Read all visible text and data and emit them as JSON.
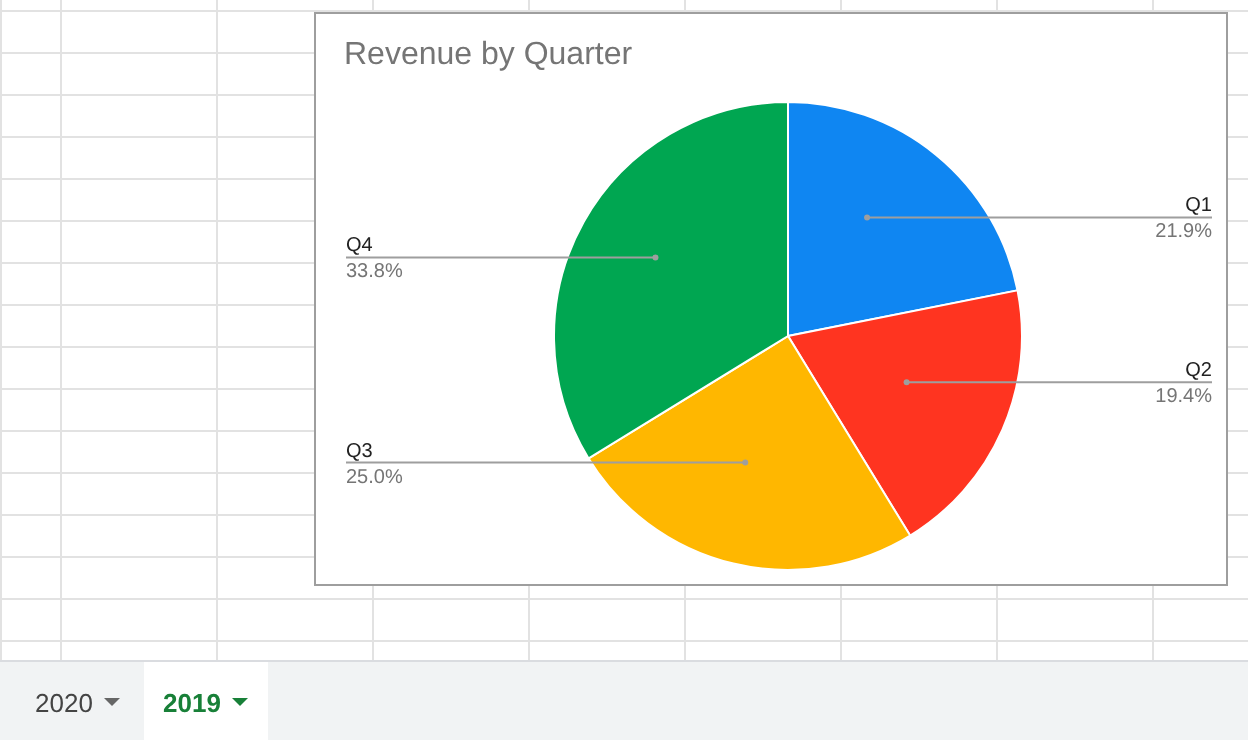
{
  "chart_data": {
    "type": "pie",
    "title": "Revenue by Quarter",
    "categories": [
      "Q1",
      "Q2",
      "Q3",
      "Q4"
    ],
    "values": [
      21.9,
      19.4,
      25.0,
      33.8
    ],
    "value_labels": [
      "21.9%",
      "19.4%",
      "25.0%",
      "33.8%"
    ],
    "colors": [
      "#0f86f2",
      "#ff3420",
      "#ffb700",
      "#00a651"
    ],
    "annotations": [
      "2020",
      "2019"
    ]
  }
}
